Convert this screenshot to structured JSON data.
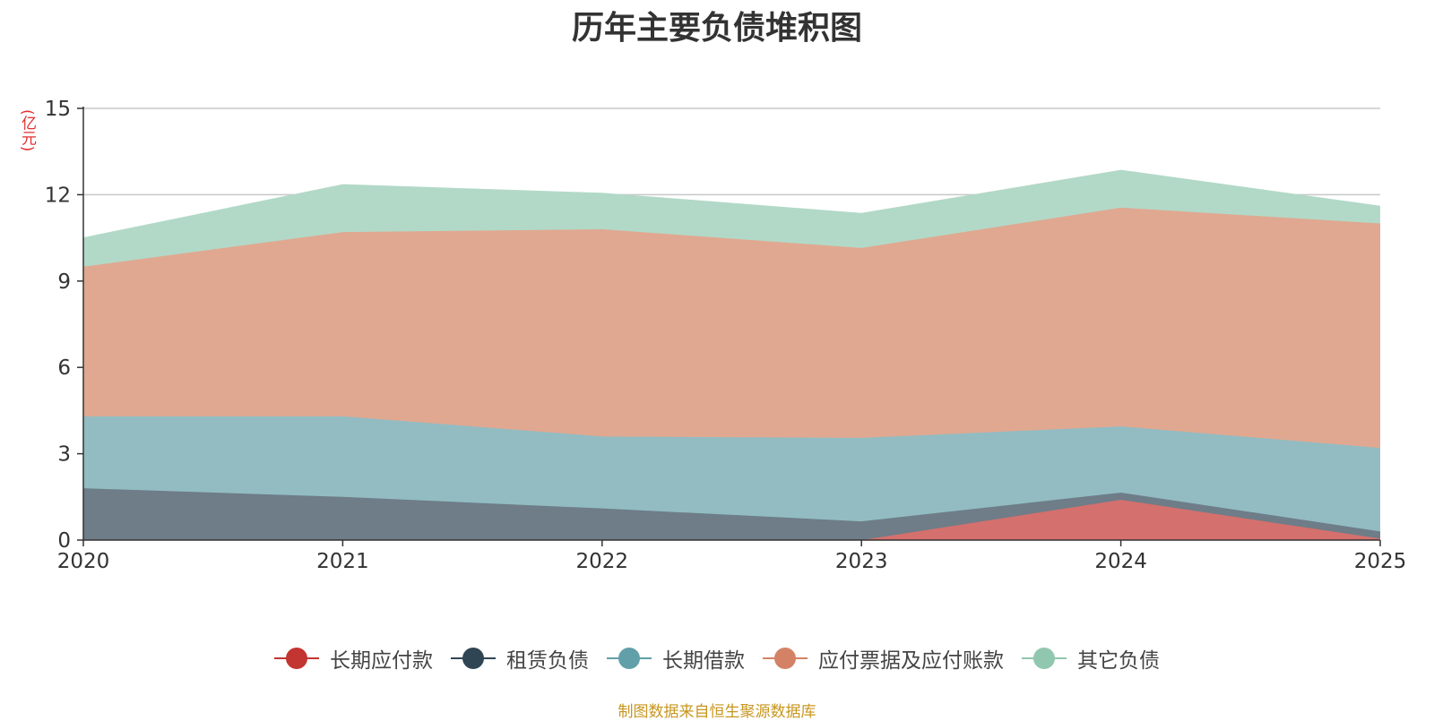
{
  "chart_data": {
    "type": "area",
    "stacked": true,
    "title": "历年主要负债堆积图",
    "ylabel": "(亿元)",
    "xlabel": "",
    "categories": [
      "2020",
      "2021",
      "2022",
      "2023",
      "2024",
      "2025"
    ],
    "ylim": [
      0,
      15
    ],
    "yticks": [
      0,
      3,
      6,
      9,
      12,
      15
    ],
    "grid": true,
    "legend_position": "bottom",
    "series": [
      {
        "name": "长期应付款",
        "color": "#c23531",
        "fill": "#d4706d",
        "values": [
          0,
          0,
          0,
          0,
          1.4,
          0.05
        ]
      },
      {
        "name": "租赁负债",
        "color": "#2f4554",
        "fill": "#6e7d88",
        "values": [
          1.8,
          1.5,
          1.1,
          0.65,
          0.25,
          0.25
        ]
      },
      {
        "name": "长期借款",
        "color": "#61a0a8",
        "fill": "#92bcc2",
        "values": [
          2.5,
          2.8,
          2.5,
          2.9,
          2.3,
          2.9
        ]
      },
      {
        "name": "应付票据及应付账款",
        "color": "#d48265",
        "fill": "#e0a891",
        "values": [
          5.2,
          6.4,
          7.2,
          6.6,
          7.6,
          7.8
        ]
      },
      {
        "name": "其它负债",
        "color": "#91c7ae",
        "fill": "#b2d9c7",
        "values": [
          1.0,
          1.65,
          1.25,
          1.2,
          1.3,
          0.6
        ]
      }
    ]
  },
  "source": "制图数据来自恒生聚源数据库"
}
